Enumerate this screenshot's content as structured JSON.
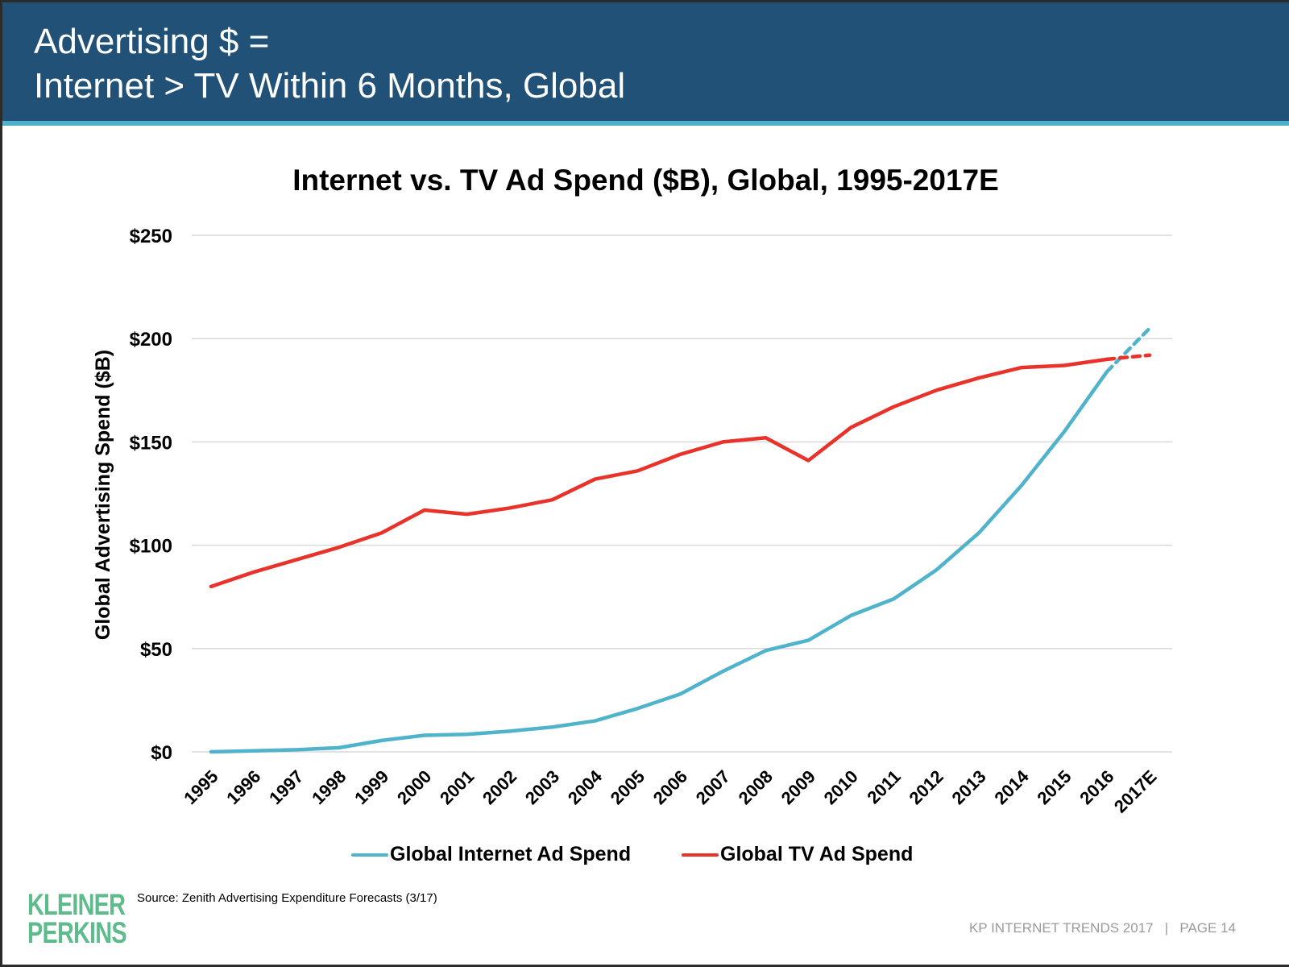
{
  "slide": {
    "title_line1": "Advertising $ =",
    "title_line2": "Internet > TV Within 6 Months, Global",
    "source": "Source: Zenith Advertising Expenditure Forecasts (3/17)",
    "logo_line1": "KLEINER",
    "logo_line2": "PERKINS",
    "footer_left": "KP INTERNET TRENDS 2017",
    "footer_sep": "|",
    "footer_right": "PAGE 14",
    "colors": {
      "header": "#215177",
      "accent_stripe": "#4fb0c9",
      "logo": "#5dbb8c"
    }
  },
  "chart_data": {
    "type": "line",
    "title": "Internet vs. TV Ad Spend ($B), Global, 1995-2017E",
    "xlabel": "",
    "ylabel": "Global Advertising Spend ($B)",
    "ylim": [
      0,
      250
    ],
    "yticks": [
      0,
      50,
      100,
      150,
      200,
      250
    ],
    "ytick_labels": [
      "$0",
      "$50",
      "$100",
      "$150",
      "$200",
      "$250"
    ],
    "grid": true,
    "legend_position": "bottom-center",
    "categories": [
      "1995",
      "1996",
      "1997",
      "1998",
      "1999",
      "2000",
      "2001",
      "2002",
      "2003",
      "2004",
      "2005",
      "2006",
      "2007",
      "2008",
      "2009",
      "2010",
      "2011",
      "2012",
      "2013",
      "2014",
      "2015",
      "2016",
      "2017E"
    ],
    "estimate_from_index": 21,
    "series": [
      {
        "name": "Global Internet Ad Spend",
        "color": "#4fb3cb",
        "values": [
          0,
          0.5,
          1,
          2,
          5.5,
          8,
          8.5,
          10,
          12,
          15,
          21,
          28,
          39,
          49,
          54,
          66,
          74,
          88,
          106,
          129,
          155,
          184,
          205
        ]
      },
      {
        "name": "Global TV Ad Spend",
        "color": "#e8322a",
        "values": [
          80,
          87,
          93,
          99,
          106,
          117,
          115,
          118,
          122,
          132,
          136,
          144,
          150,
          152,
          141,
          157,
          167,
          175,
          181,
          186,
          187,
          190,
          192
        ]
      }
    ]
  }
}
